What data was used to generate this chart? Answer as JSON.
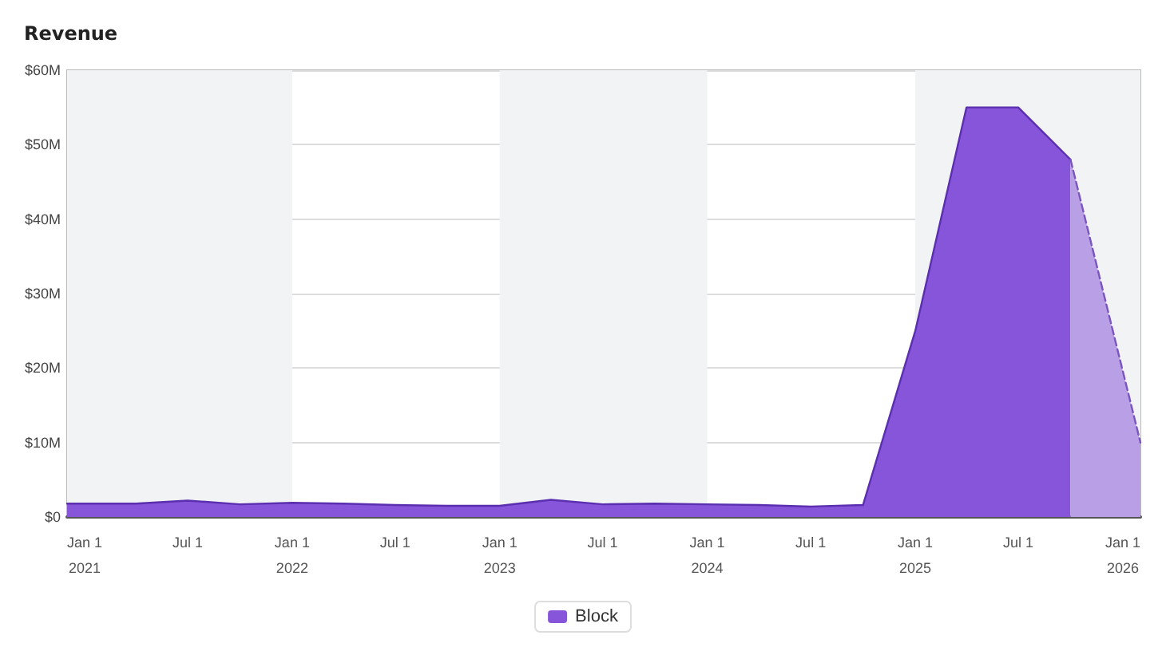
{
  "chart_data": {
    "type": "area",
    "title": "Revenue",
    "xlim": [
      "2020-12-01",
      "2026-02-01"
    ],
    "xticks": [
      {
        "value": "2021-01-01",
        "label": "Jan 1\n2021"
      },
      {
        "value": "2021-07-01",
        "label": "Jul 1"
      },
      {
        "value": "2022-01-01",
        "label": "Jan 1\n2022"
      },
      {
        "value": "2022-07-01",
        "label": "Jul 1"
      },
      {
        "value": "2023-01-01",
        "label": "Jan 1\n2023"
      },
      {
        "value": "2023-07-01",
        "label": "Jul 1"
      },
      {
        "value": "2024-01-01",
        "label": "Jan 1\n2024"
      },
      {
        "value": "2024-07-01",
        "label": "Jul 1"
      },
      {
        "value": "2025-01-01",
        "label": "Jan 1\n2025"
      },
      {
        "value": "2025-07-01",
        "label": "Jul 1"
      },
      {
        "value": "2026-01-01",
        "label": "Jan 1\n2026"
      }
    ],
    "ylim": [
      0,
      60
    ],
    "yticks": [
      {
        "value": 0,
        "label": "$0"
      },
      {
        "value": 10,
        "label": "$10M"
      },
      {
        "value": 20,
        "label": "$20M"
      },
      {
        "value": 30,
        "label": "$30M"
      },
      {
        "value": 40,
        "label": "$40M"
      },
      {
        "value": 50,
        "label": "$50M"
      },
      {
        "value": 60,
        "label": "$60M"
      }
    ],
    "series": [
      {
        "name": "Block",
        "color": "#8655d9",
        "x": [
          "2020-12-01",
          "2021-04-01",
          "2021-07-01",
          "2021-10-01",
          "2022-01-01",
          "2022-04-01",
          "2022-07-01",
          "2022-10-01",
          "2023-01-01",
          "2023-04-01",
          "2023-07-01",
          "2023-10-01",
          "2024-01-01",
          "2024-04-01",
          "2024-07-01",
          "2024-10-01",
          "2025-01-01",
          "2025-04-01",
          "2025-07-01",
          "2025-10-01"
        ],
        "values": [
          1.8,
          1.8,
          2.2,
          1.7,
          1.9,
          1.8,
          1.6,
          1.5,
          1.5,
          2.3,
          1.7,
          1.8,
          1.7,
          1.6,
          1.4,
          1.6,
          25,
          55,
          55,
          48
        ]
      },
      {
        "color": "#b9a0e6",
        "line_style": "dashed",
        "x": [
          "2025-10-01",
          "2026-02-01"
        ],
        "values": [
          48,
          10
        ]
      }
    ],
    "bands": [
      {
        "axis": "x",
        "from": "2020-12-01",
        "to": "2022-01-01",
        "color": "#f2f3f5"
      },
      {
        "axis": "x",
        "from": "2023-01-01",
        "to": "2024-01-01",
        "color": "#f2f3f5"
      },
      {
        "axis": "x",
        "from": "2025-01-01",
        "to": "2026-02-01",
        "color": "#f2f3f5"
      }
    ],
    "grid": "y",
    "legend": "bottom",
    "marker": "none"
  }
}
